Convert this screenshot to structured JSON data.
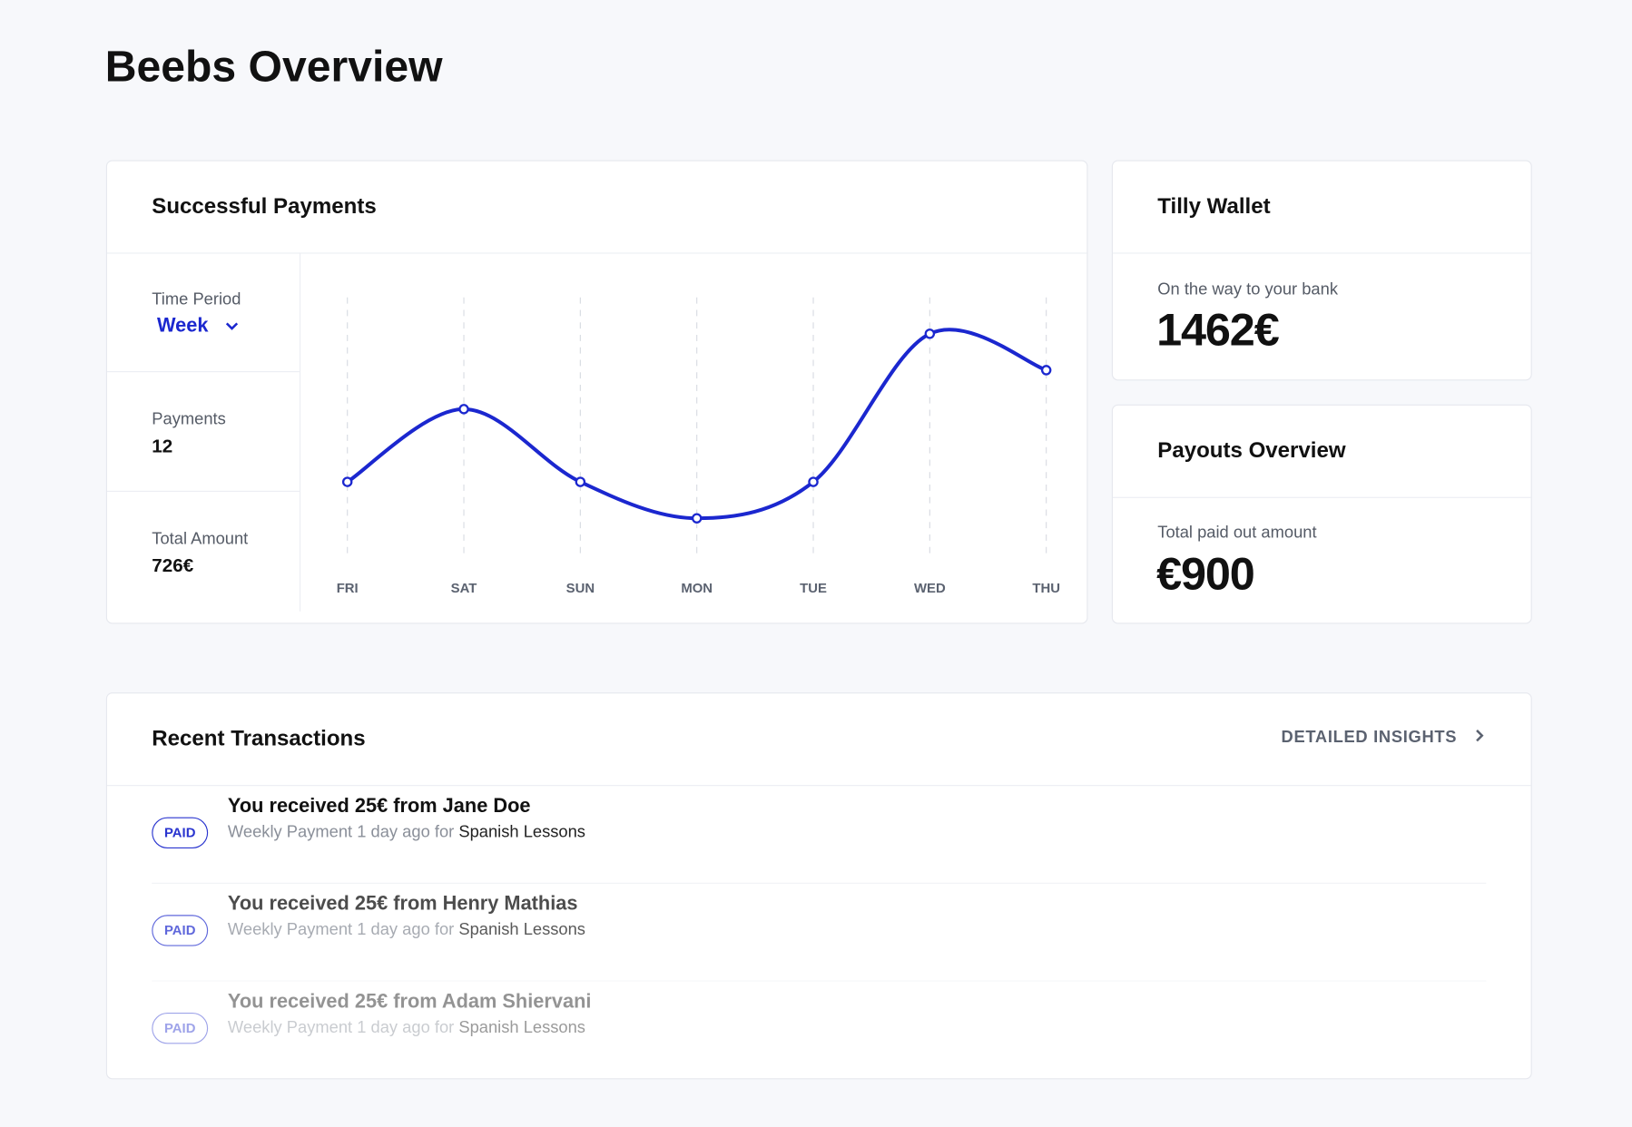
{
  "header": {
    "title": "Beebs Overview"
  },
  "chart_data": {
    "type": "line",
    "title": "Successful Payments",
    "categories": [
      "FRI",
      "SAT",
      "SUN",
      "MON",
      "TUE",
      "WED",
      "THU"
    ],
    "series": [
      {
        "color": "#1b27cf",
        "values": [
          2.9,
          5.7,
          2.9,
          1.5,
          2.9,
          8.6,
          7.2
        ]
      }
    ],
    "ylim": [
      0,
      10
    ],
    "grid": true
  },
  "stats": [
    {
      "label": "Time Period",
      "value": "Week"
    },
    {
      "label": "Payments",
      "value": "12"
    },
    {
      "label": "Total Amount",
      "value": "726€"
    }
  ],
  "wallet": {
    "title": "Tilly Wallet",
    "label": "On the way to your bank",
    "value": "1462€"
  },
  "payouts": {
    "title": "Payouts Overview",
    "label": "Total paid out amount",
    "value": "€900"
  },
  "transactions": {
    "title": "Recent Transactions",
    "link": "DETAILED INSIGHTS",
    "rows": [
      {
        "badge": "PAID",
        "title": "You received 25€ from Jane Doe",
        "detail": "Weekly Payment 1 day ago for",
        "course": "Spanish Lessons"
      },
      {
        "badge": "PAID",
        "title": "You received 25€ from Henry Mathias",
        "detail": "Weekly Payment 1 day ago for",
        "course": "Spanish Lessons"
      },
      {
        "badge": "PAID",
        "title": "You received 25€ from Adam Shiervani",
        "detail": "Weekly Payment 1 day ago for",
        "course": "Spanish Lessons"
      }
    ]
  }
}
